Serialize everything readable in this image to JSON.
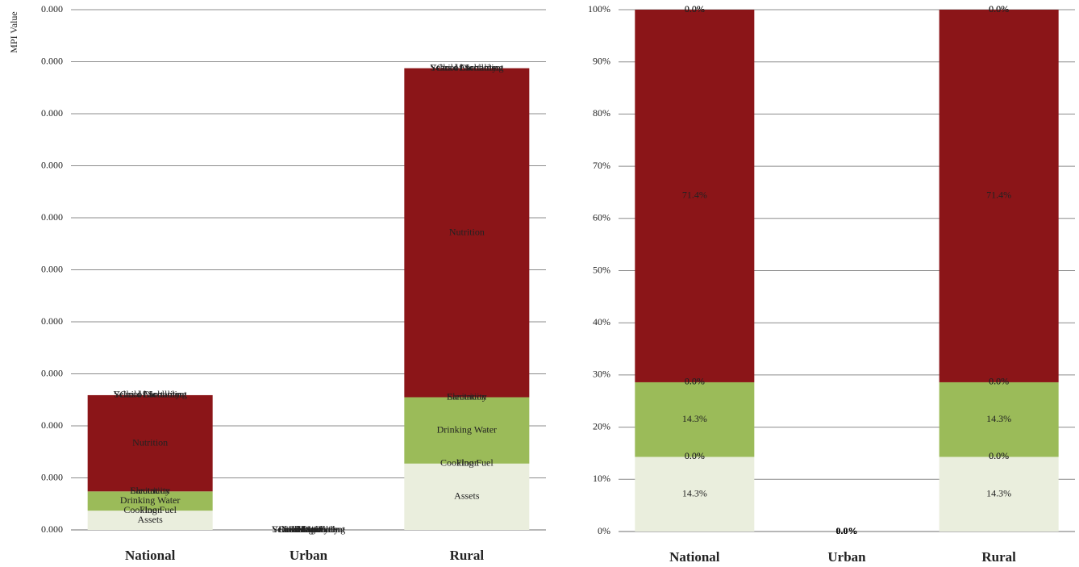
{
  "chart_data": [
    {
      "type": "bar",
      "stacked": true,
      "y_label": "MPI Value",
      "categories": [
        "National",
        "Urban",
        "Rural"
      ],
      "ylim": [
        0,
        0.0004
      ],
      "yticks": [
        {
          "value": 0,
          "label": "0.000"
        },
        {
          "value": 4e-05,
          "label": "0.000"
        },
        {
          "value": 8e-05,
          "label": "0.000"
        },
        {
          "value": 0.00012,
          "label": "0.000"
        },
        {
          "value": 0.00016,
          "label": "0.000"
        },
        {
          "value": 0.0002,
          "label": "0.000"
        },
        {
          "value": 0.00024,
          "label": "0.000"
        },
        {
          "value": 0.00028,
          "label": "0.000"
        },
        {
          "value": 0.00032,
          "label": "0.000"
        },
        {
          "value": 0.00036,
          "label": "0.000"
        },
        {
          "value": 0.0004,
          "label": "0.000"
        }
      ],
      "grid": true,
      "series": [
        {
          "name": "Assets",
          "color": "#eaeedd",
          "values": [
            1.48e-05,
            0,
            5.1e-05
          ]
        },
        {
          "name": "Cooking Fuel",
          "color": "#d7e4bd",
          "values": [
            0,
            0,
            0
          ]
        },
        {
          "name": "Floor",
          "color": "#c3d69b",
          "values": [
            0,
            0,
            0
          ]
        },
        {
          "name": "Drinking Water",
          "color": "#9bbb59",
          "values": [
            1.48e-05,
            0,
            5.1e-05
          ]
        },
        {
          "name": "Electricity",
          "color": "#77933c",
          "values": [
            0,
            0,
            0
          ]
        },
        {
          "name": "Sanitation",
          "color": "#4f6228",
          "values": [
            0,
            0,
            0
          ]
        },
        {
          "name": "Nutrition",
          "color": "#8b1518",
          "values": [
            7.4e-05,
            0,
            0.000253
          ]
        },
        {
          "name": "Child Mortality",
          "color": "#c0504d",
          "values": [
            0,
            0,
            0
          ]
        },
        {
          "name": "School Enrollment",
          "color": "#632523",
          "values": [
            0,
            0,
            0
          ]
        },
        {
          "name": "Years of Schooling",
          "color": "#953735",
          "values": [
            0,
            0,
            0
          ]
        }
      ]
    },
    {
      "type": "bar",
      "stacked": true,
      "categories": [
        "National",
        "Urban",
        "Rural"
      ],
      "ylim": [
        0,
        100
      ],
      "yticks": [
        {
          "value": 0,
          "label": "0%"
        },
        {
          "value": 10,
          "label": "10%"
        },
        {
          "value": 20,
          "label": "20%"
        },
        {
          "value": 30,
          "label": "30%"
        },
        {
          "value": 40,
          "label": "40%"
        },
        {
          "value": 50,
          "label": "50%"
        },
        {
          "value": 60,
          "label": "60%"
        },
        {
          "value": 70,
          "label": "70%"
        },
        {
          "value": 80,
          "label": "80%"
        },
        {
          "value": 90,
          "label": "90%"
        },
        {
          "value": 100,
          "label": "100%"
        }
      ],
      "grid": true,
      "series": [
        {
          "name": "Assets",
          "color": "#eaeedd",
          "values": [
            14.3,
            0,
            14.3
          ],
          "value_labels": [
            "14.3%",
            "0.0%",
            "14.3%"
          ]
        },
        {
          "name": "Cooking Fuel",
          "color": "#d7e4bd",
          "values": [
            0,
            0,
            0
          ],
          "value_labels": [
            "0.0%",
            "0.0%",
            "0.0%"
          ]
        },
        {
          "name": "Floor",
          "color": "#c3d69b",
          "values": [
            0,
            0,
            0
          ],
          "value_labels": [
            "0.0%",
            "0.0%",
            "0.0%"
          ]
        },
        {
          "name": "Drinking Water",
          "color": "#9bbb59",
          "values": [
            14.3,
            0,
            14.3
          ],
          "value_labels": [
            "14.3%",
            "0.0%",
            "14.3%"
          ]
        },
        {
          "name": "Electricity",
          "color": "#77933c",
          "values": [
            0,
            0,
            0
          ],
          "value_labels": [
            "0.0%",
            "0.0%",
            "0.0%"
          ]
        },
        {
          "name": "Sanitation",
          "color": "#4f6228",
          "values": [
            0,
            0,
            0
          ],
          "value_labels": [
            "0.0%",
            "0.0%",
            "0.0%"
          ]
        },
        {
          "name": "Nutrition",
          "color": "#8b1518",
          "values": [
            71.4,
            0,
            71.4
          ],
          "value_labels": [
            "71.4%",
            "0.0%",
            "71.4%"
          ]
        },
        {
          "name": "Child Mortality",
          "color": "#c0504d",
          "values": [
            0,
            0,
            0
          ],
          "value_labels": [
            "0.0%",
            "0.0%",
            "0.0%"
          ]
        },
        {
          "name": "School Enrollment",
          "color": "#632523",
          "values": [
            0,
            0,
            0
          ],
          "value_labels": [
            "0.0%",
            "0.0%",
            "0.0%"
          ]
        },
        {
          "name": "Years of Schooling",
          "color": "#953735",
          "values": [
            0,
            0,
            0
          ],
          "value_labels": [
            "0.0%",
            "0.0%",
            "0.0%"
          ]
        }
      ]
    }
  ]
}
